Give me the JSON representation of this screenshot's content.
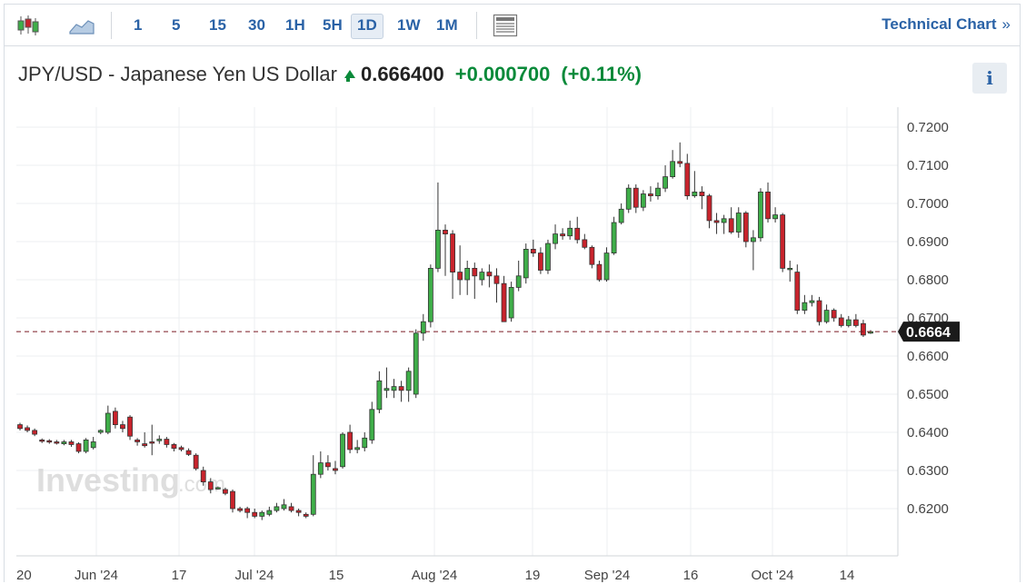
{
  "toolbar": {
    "periods": [
      "1",
      "5",
      "15",
      "30",
      "1H",
      "5H",
      "1D",
      "1W",
      "1M"
    ],
    "active_period": "1D",
    "technical_chart_label": "Technical Chart",
    "technical_chart_chevron": "»",
    "icons": [
      "candlestick-chart-icon",
      "area-chart-icon",
      "news-panel-icon"
    ]
  },
  "header": {
    "title": "JPY/USD - Japanese Yen US Dollar",
    "price": "0.666400",
    "change": "+0.000700",
    "change_pct": "(+0.11%)",
    "info_label": "i"
  },
  "watermark": {
    "brand": "Investing",
    "suffix": ".com"
  },
  "colors": {
    "up": "#3fae49",
    "down": "#c8232c",
    "accent": "#2a62a6",
    "price_line": "#7a1a24"
  },
  "chart_data": {
    "type": "candlestick",
    "ylim": [
      0.617,
      0.7215
    ],
    "y_ticks": [
      "0.6200",
      "0.6300",
      "0.6400",
      "0.6500",
      "0.6600",
      "0.6700",
      "0.6800",
      "0.6900",
      "0.7000",
      "0.7100",
      "0.7200"
    ],
    "x_tick_labels": [
      "20",
      "Jun '24",
      "17",
      "Jul '24",
      "15",
      "Aug '24",
      "19",
      "Sep '24",
      "16",
      "Oct '24",
      "14"
    ],
    "current_price_label": "0.6664",
    "current_price": 0.6664,
    "grid": true,
    "candles": [
      [
        0.642,
        0.641,
        0.6425,
        0.6405
      ],
      [
        0.6412,
        0.6405,
        0.6418,
        0.64
      ],
      [
        0.6405,
        0.6395,
        0.641,
        0.639
      ],
      [
        0.638,
        0.6378,
        0.6384,
        0.6372
      ],
      [
        0.6378,
        0.6375,
        0.6382,
        0.637
      ],
      [
        0.6375,
        0.6373,
        0.638,
        0.6368
      ],
      [
        0.637,
        0.6375,
        0.638,
        0.6366
      ],
      [
        0.6375,
        0.6368,
        0.638,
        0.6362
      ],
      [
        0.637,
        0.635,
        0.6374,
        0.6345
      ],
      [
        0.635,
        0.638,
        0.6385,
        0.6345
      ],
      [
        0.636,
        0.6375,
        0.6388,
        0.6355
      ],
      [
        0.64,
        0.6405,
        0.6408,
        0.6395
      ],
      [
        0.64,
        0.645,
        0.647,
        0.6395
      ],
      [
        0.6455,
        0.642,
        0.6465,
        0.641
      ],
      [
        0.642,
        0.641,
        0.643,
        0.64
      ],
      [
        0.644,
        0.639,
        0.6445,
        0.638
      ],
      [
        0.638,
        0.6375,
        0.6385,
        0.6365
      ],
      [
        0.637,
        0.6365,
        0.64,
        0.636
      ],
      [
        0.6375,
        0.6372,
        0.642,
        0.634
      ],
      [
        0.6378,
        0.6382,
        0.6392,
        0.637
      ],
      [
        0.6382,
        0.6368,
        0.6388,
        0.636
      ],
      [
        0.6368,
        0.6358,
        0.6372,
        0.635
      ],
      [
        0.636,
        0.6355,
        0.6365,
        0.635
      ],
      [
        0.6352,
        0.6342,
        0.6358,
        0.6338
      ],
      [
        0.634,
        0.6305,
        0.6345,
        0.63
      ],
      [
        0.63,
        0.627,
        0.631,
        0.626
      ],
      [
        0.627,
        0.625,
        0.628,
        0.624
      ],
      [
        0.6255,
        0.6255,
        0.6258,
        0.625
      ],
      [
        0.625,
        0.624,
        0.6255,
        0.6235
      ],
      [
        0.6245,
        0.62,
        0.625,
        0.619
      ],
      [
        0.62,
        0.6195,
        0.6205,
        0.619
      ],
      [
        0.62,
        0.619,
        0.6205,
        0.6175
      ],
      [
        0.619,
        0.618,
        0.62,
        0.6175
      ],
      [
        0.618,
        0.619,
        0.6195,
        0.617
      ],
      [
        0.6185,
        0.6195,
        0.6205,
        0.618
      ],
      [
        0.6195,
        0.6205,
        0.6215,
        0.619
      ],
      [
        0.62,
        0.621,
        0.6225,
        0.6195
      ],
      [
        0.6205,
        0.6195,
        0.6215,
        0.619
      ],
      [
        0.6195,
        0.619,
        0.62,
        0.618
      ],
      [
        0.6185,
        0.618,
        0.619,
        0.6175
      ],
      [
        0.6185,
        0.629,
        0.634,
        0.618
      ],
      [
        0.629,
        0.632,
        0.635,
        0.628
      ],
      [
        0.632,
        0.631,
        0.634,
        0.63
      ],
      [
        0.6305,
        0.63,
        0.6325,
        0.629
      ],
      [
        0.631,
        0.6395,
        0.64,
        0.6305
      ],
      [
        0.64,
        0.6355,
        0.642,
        0.6345
      ],
      [
        0.6355,
        0.636,
        0.638,
        0.6345
      ],
      [
        0.636,
        0.6385,
        0.64,
        0.635
      ],
      [
        0.638,
        0.646,
        0.648,
        0.637
      ],
      [
        0.646,
        0.6535,
        0.656,
        0.645
      ],
      [
        0.651,
        0.6515,
        0.657,
        0.649
      ],
      [
        0.651,
        0.652,
        0.654,
        0.649
      ],
      [
        0.652,
        0.651,
        0.6535,
        0.648
      ],
      [
        0.651,
        0.656,
        0.657,
        0.648
      ],
      [
        0.65,
        0.666,
        0.667,
        0.649
      ],
      [
        0.666,
        0.669,
        0.671,
        0.664
      ],
      [
        0.669,
        0.683,
        0.684,
        0.6675
      ],
      [
        0.683,
        0.693,
        0.7055,
        0.682
      ],
      [
        0.693,
        0.692,
        0.6945,
        0.681
      ],
      [
        0.692,
        0.682,
        0.693,
        0.675
      ],
      [
        0.682,
        0.68,
        0.689,
        0.676
      ],
      [
        0.68,
        0.683,
        0.685,
        0.676
      ],
      [
        0.683,
        0.681,
        0.6845,
        0.675
      ],
      [
        0.68,
        0.682,
        0.683,
        0.6785
      ],
      [
        0.682,
        0.681,
        0.684,
        0.678
      ],
      [
        0.681,
        0.679,
        0.683,
        0.674
      ],
      [
        0.679,
        0.669,
        0.681,
        0.669
      ],
      [
        0.67,
        0.678,
        0.6795,
        0.669
      ],
      [
        0.678,
        0.681,
        0.685,
        0.677
      ],
      [
        0.6805,
        0.688,
        0.6895,
        0.679
      ],
      [
        0.688,
        0.687,
        0.6905,
        0.686
      ],
      [
        0.687,
        0.6825,
        0.6885,
        0.6815
      ],
      [
        0.6825,
        0.6895,
        0.6905,
        0.6815
      ],
      [
        0.6895,
        0.692,
        0.6945,
        0.688
      ],
      [
        0.692,
        0.6915,
        0.6935,
        0.6905
      ],
      [
        0.6915,
        0.6935,
        0.6955,
        0.6905
      ],
      [
        0.6935,
        0.6905,
        0.6965,
        0.6895
      ],
      [
        0.6905,
        0.6885,
        0.692,
        0.688
      ],
      [
        0.6885,
        0.684,
        0.689,
        0.683
      ],
      [
        0.684,
        0.68,
        0.685,
        0.6795
      ],
      [
        0.68,
        0.687,
        0.6885,
        0.6795
      ],
      [
        0.687,
        0.695,
        0.6965,
        0.6865
      ],
      [
        0.695,
        0.6985,
        0.7,
        0.6945
      ],
      [
        0.6985,
        0.704,
        0.705,
        0.6975
      ],
      [
        0.704,
        0.699,
        0.705,
        0.6975
      ],
      [
        0.699,
        0.7025,
        0.7035,
        0.698
      ],
      [
        0.7025,
        0.702,
        0.7045,
        0.7005
      ],
      [
        0.702,
        0.704,
        0.7055,
        0.701
      ],
      [
        0.704,
        0.707,
        0.71,
        0.703
      ],
      [
        0.707,
        0.711,
        0.714,
        0.7065
      ],
      [
        0.711,
        0.7105,
        0.716,
        0.7095
      ],
      [
        0.7105,
        0.702,
        0.713,
        0.701
      ],
      [
        0.702,
        0.703,
        0.7085,
        0.7015
      ],
      [
        0.703,
        0.702,
        0.7045,
        0.6985
      ],
      [
        0.702,
        0.6955,
        0.7025,
        0.6935
      ],
      [
        0.6955,
        0.695,
        0.6975,
        0.692
      ],
      [
        0.695,
        0.696,
        0.697,
        0.692
      ],
      [
        0.696,
        0.6925,
        0.699,
        0.692
      ],
      [
        0.6925,
        0.6975,
        0.699,
        0.691
      ],
      [
        0.6975,
        0.69,
        0.698,
        0.6885
      ],
      [
        0.69,
        0.691,
        0.693,
        0.6825
      ],
      [
        0.691,
        0.703,
        0.704,
        0.69
      ],
      [
        0.703,
        0.696,
        0.7055,
        0.695
      ],
      [
        0.696,
        0.697,
        0.699,
        0.695
      ],
      [
        0.697,
        0.683,
        0.6975,
        0.682
      ],
      [
        0.683,
        0.683,
        0.685,
        0.6795
      ],
      [
        0.682,
        0.672,
        0.684,
        0.671
      ],
      [
        0.672,
        0.674,
        0.676,
        0.671
      ],
      [
        0.674,
        0.6745,
        0.676,
        0.673
      ],
      [
        0.6745,
        0.669,
        0.6755,
        0.668
      ],
      [
        0.669,
        0.672,
        0.6735,
        0.6685
      ],
      [
        0.672,
        0.67,
        0.6725,
        0.669
      ],
      [
        0.67,
        0.668,
        0.671,
        0.6675
      ],
      [
        0.668,
        0.6695,
        0.6705,
        0.6675
      ],
      [
        0.6695,
        0.668,
        0.671,
        0.6675
      ],
      [
        0.6685,
        0.6655,
        0.6695,
        0.665
      ],
      [
        0.666,
        0.6664,
        0.6668,
        0.6658
      ]
    ]
  }
}
